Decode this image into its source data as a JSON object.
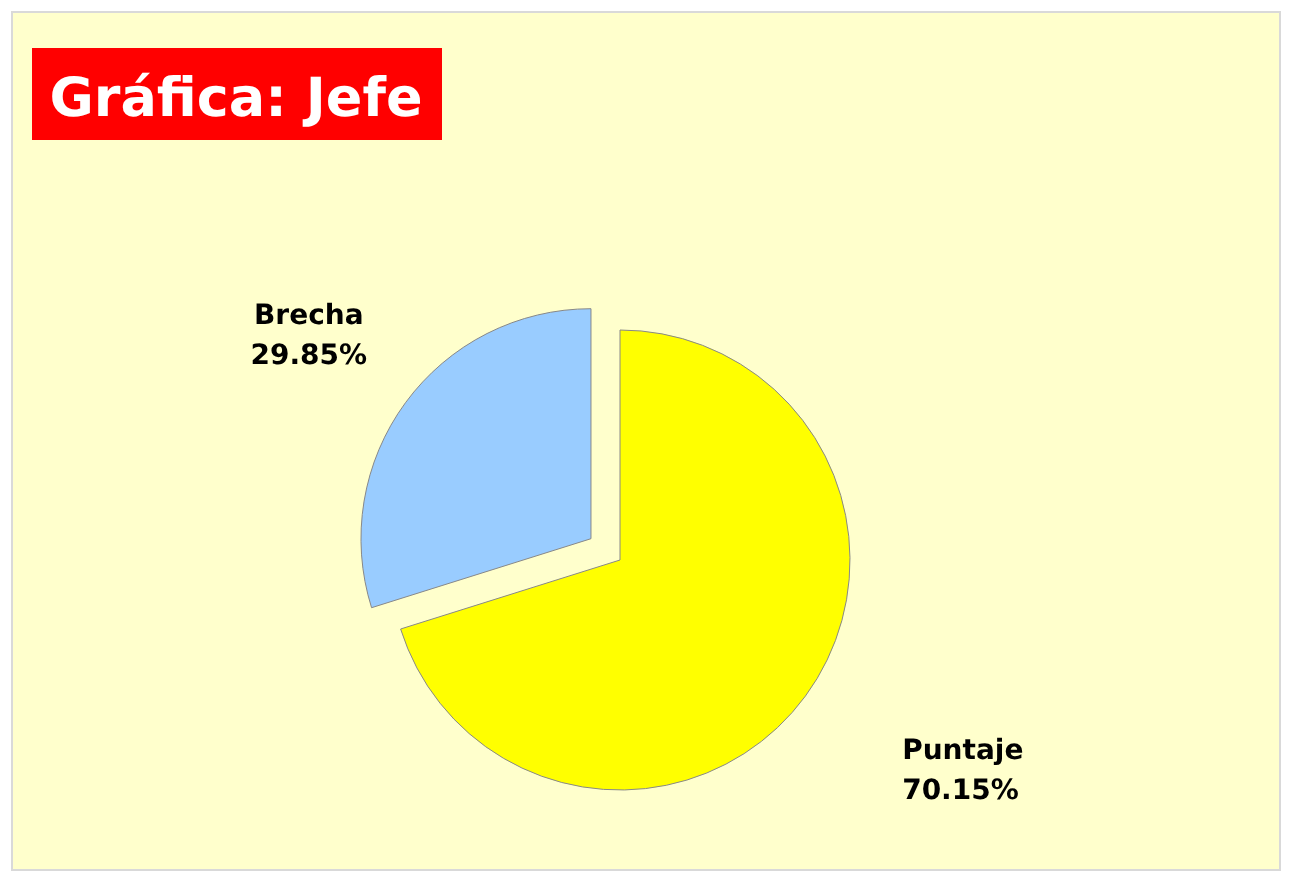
{
  "chart_data": {
    "type": "pie",
    "title": "Gráfica: Jefe",
    "categories": [
      "Puntaje",
      "Brecha"
    ],
    "values": [
      70.15,
      29.85
    ],
    "colors": [
      "#ffff00",
      "#99ccff"
    ],
    "value_labels": [
      "70.15%",
      "29.85%"
    ]
  }
}
